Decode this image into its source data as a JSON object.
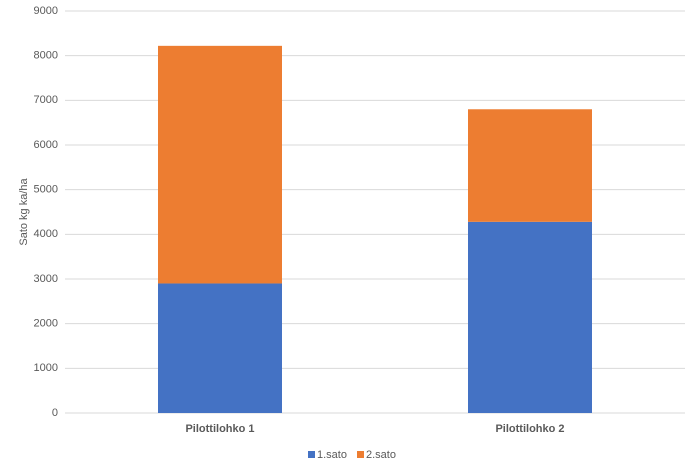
{
  "chart_data": {
    "type": "stacked_bar",
    "y_label": "Sato kg ka/ha",
    "categories": [
      "Pilottilohko 1",
      "Pilottilohko 2"
    ],
    "series": [
      {
        "name": "1.sato",
        "color": "#4472c4",
        "values": [
          2900,
          4280
        ]
      },
      {
        "name": "2.sato",
        "color": "#ed7d31",
        "values": [
          5320,
          2520
        ]
      }
    ],
    "ylim": [
      0,
      9000
    ],
    "yticks": [
      0,
      1000,
      2000,
      3000,
      4000,
      5000,
      6000,
      7000,
      8000,
      9000
    ],
    "grid": true,
    "legend": "bottom"
  }
}
